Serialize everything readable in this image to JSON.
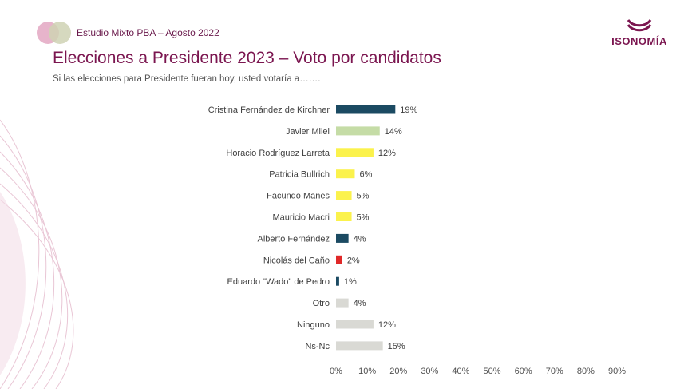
{
  "header": {
    "study_label": "Estudio Mixto PBA – Agosto 2022",
    "brand_name": "ISONOMÍA"
  },
  "slide": {
    "title": "Elecciones a Presidente 2023 – Voto por candidatos",
    "subtitle": "Si las elecciones para Presidente fueran hoy, usted votaría a……."
  },
  "colors": {
    "brand": "#7b1650",
    "dark_teal": "#1b4a62",
    "light_green": "#c5dca6",
    "yellow": "#fbf24c",
    "red": "#e02828",
    "gray": "#d9d9d4"
  },
  "chart_data": {
    "type": "bar",
    "orientation": "horizontal",
    "categories": [
      "Cristina Fernández de Kirchner",
      "Javier Milei",
      "Horacio Rodríguez Larreta",
      "Patricia Bullrich",
      "Facundo Manes",
      "Mauricio Macri",
      "Alberto Fernández",
      "Nicolás del Caño",
      "Eduardo \"Wado\" de Pedro",
      "Otro",
      "Ninguno",
      "Ns-Nc"
    ],
    "values": [
      19,
      14,
      12,
      6,
      5,
      5,
      4,
      2,
      1,
      4,
      12,
      15
    ],
    "value_labels": [
      "19%",
      "14%",
      "12%",
      "6%",
      "5%",
      "5%",
      "4%",
      "2%",
      "1%",
      "4%",
      "12%",
      "15%"
    ],
    "bar_colors": [
      "#1b4a62",
      "#c5dca6",
      "#fbf24c",
      "#fbf24c",
      "#fbf24c",
      "#fbf24c",
      "#1b4a62",
      "#e02828",
      "#1b4a62",
      "#d9d9d4",
      "#d9d9d4",
      "#d9d9d4"
    ],
    "x_ticks": [
      0,
      10,
      20,
      30,
      40,
      50,
      60,
      70,
      80,
      90
    ],
    "x_tick_labels": [
      "0%",
      "10%",
      "20%",
      "30%",
      "40%",
      "50%",
      "60%",
      "70%",
      "80%",
      "90%"
    ],
    "xlim": [
      0,
      90
    ],
    "grid": false,
    "legend": "none"
  }
}
